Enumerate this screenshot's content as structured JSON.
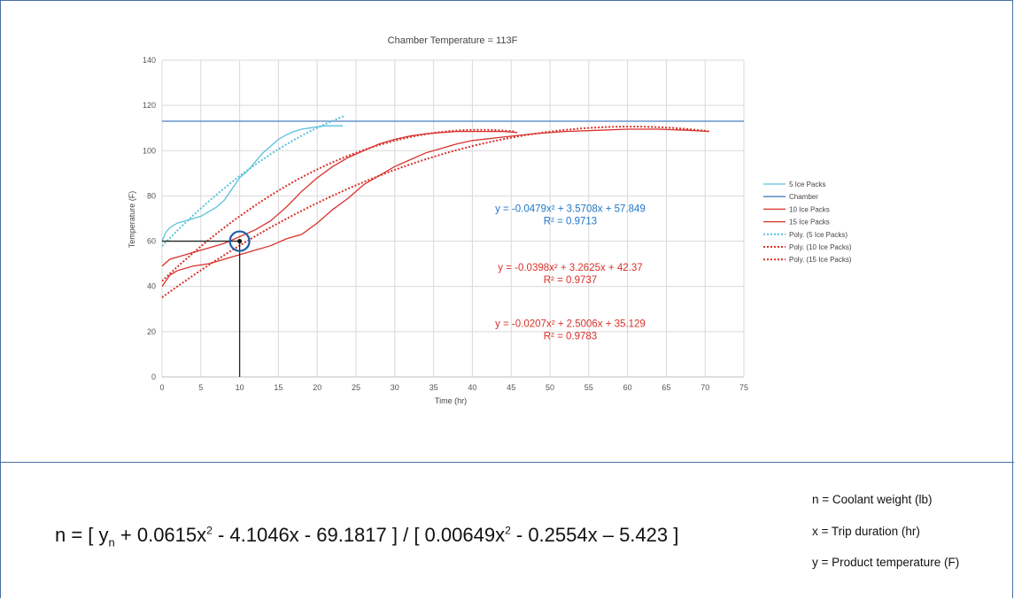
{
  "chart_data": {
    "type": "line",
    "title": "Chamber Temperature = 113F",
    "xlabel": "Time (hr)",
    "ylabel": "Temperature (F)",
    "xlim": [
      0,
      75
    ],
    "ylim": [
      0,
      140
    ],
    "xticks": [
      "0",
      "5",
      "10",
      "15",
      "20",
      "25",
      "30",
      "35",
      "40",
      "45",
      "50",
      "55",
      "60",
      "65",
      "70",
      "75"
    ],
    "yticks": [
      "0",
      "20",
      "40",
      "60",
      "80",
      "100",
      "120",
      "140"
    ],
    "grid": true,
    "legend_position": "right",
    "series": [
      {
        "name": "5 Ice Packs",
        "color": "#5bc0de",
        "style": "solid",
        "x": [
          0,
          0.5,
          1,
          2,
          3,
          4,
          5,
          6,
          7,
          8,
          9,
          10,
          11,
          12,
          13,
          14,
          15,
          16,
          17,
          18,
          19,
          20,
          21,
          22,
          23.3
        ],
        "y": [
          60,
          64,
          66,
          68,
          69,
          70,
          71,
          73,
          75,
          78,
          83,
          88,
          91,
          95,
          99,
          102,
          105,
          107,
          108.5,
          109.5,
          110,
          110.5,
          111,
          111,
          111
        ]
      },
      {
        "name": "Chamber",
        "color": "#4a7fc0",
        "style": "solid",
        "x": [
          0,
          75
        ],
        "y": [
          113,
          113
        ]
      },
      {
        "name": "10 Ice Packs",
        "color": "#d9302a",
        "style": "solid",
        "x": [
          0,
          1,
          2,
          4,
          6,
          8,
          10,
          12,
          14,
          16,
          18,
          20,
          22,
          24,
          26,
          28,
          30,
          32,
          34,
          36,
          38,
          40,
          42,
          44,
          45.8
        ],
        "y": [
          49,
          52,
          53,
          55,
          57,
          59,
          62,
          65,
          69,
          75,
          82,
          88,
          93,
          97,
          100,
          103,
          105,
          106.5,
          107.5,
          108,
          108.5,
          108.5,
          108.5,
          108.5,
          108
        ]
      },
      {
        "name": "15 Ice Packs",
        "color": "#d9302a",
        "style": "solid",
        "x": [
          0,
          1,
          2,
          4,
          6,
          8,
          10,
          12,
          14,
          16,
          18,
          20,
          22,
          24,
          26,
          28,
          30,
          32,
          34,
          36,
          38,
          40,
          44,
          48,
          52,
          56,
          60,
          64,
          68,
          70.5
        ],
        "y": [
          40,
          45,
          47,
          49,
          50,
          52,
          54,
          56,
          58,
          61,
          63,
          68,
          74,
          79,
          85,
          89,
          93,
          96,
          99,
          101,
          103,
          104.5,
          106,
          107.5,
          108.5,
          109,
          109.5,
          109.5,
          109,
          108.5
        ]
      },
      {
        "name": "Poly. (5 Ice Packs)",
        "color": "#5bc0de",
        "style": "dotted",
        "fn": [
          -0.0479,
          3.5708,
          57.849
        ],
        "x_range": [
          0,
          23.5
        ]
      },
      {
        "name": "Poly. (10 Ice Packs)",
        "color": "#d9302a",
        "style": "dotted",
        "fn": [
          -0.0398,
          3.2625,
          42.37
        ],
        "x_range": [
          0,
          45.5
        ]
      },
      {
        "name": "Poly. (15 Ice Packs)",
        "color": "#d9302a",
        "style": "dotted",
        "fn": [
          -0.0207,
          2.5006,
          35.129
        ],
        "x_range": [
          0,
          70.5
        ]
      }
    ],
    "annotations": [
      {
        "lines": [
          "y = -0.0479x² + 3.5708x + 57.849",
          "R² = 0.9713"
        ],
        "color": "#1f77c8",
        "x": 46,
        "y": 73
      },
      {
        "lines": [
          "y = -0.0398x² + 3.2625x + 42.37",
          "R² = 0.9737"
        ],
        "color": "#d9302a",
        "x": 46,
        "y": 47
      },
      {
        "lines": [
          "y = -0.0207x² + 2.5006x + 35.129",
          "R² = 0.9783"
        ],
        "color": "#d9302a",
        "x": 46,
        "y": 22
      }
    ],
    "marker": {
      "x": 10,
      "y": 60
    }
  },
  "equation": {
    "prefix": "n = [ y",
    "sub": "n",
    "part1": " + 0.0615x",
    "sup1": "2",
    "part2": " - 4.1046x - 69.1817 ] / [ 0.00649x",
    "sup2": "2",
    "part3": " - 0.2554x – 5.423 ]"
  },
  "definitions": [
    "n = Coolant weight (lb)",
    "x = Trip duration (hr)",
    "y = Product temperature (F)"
  ]
}
